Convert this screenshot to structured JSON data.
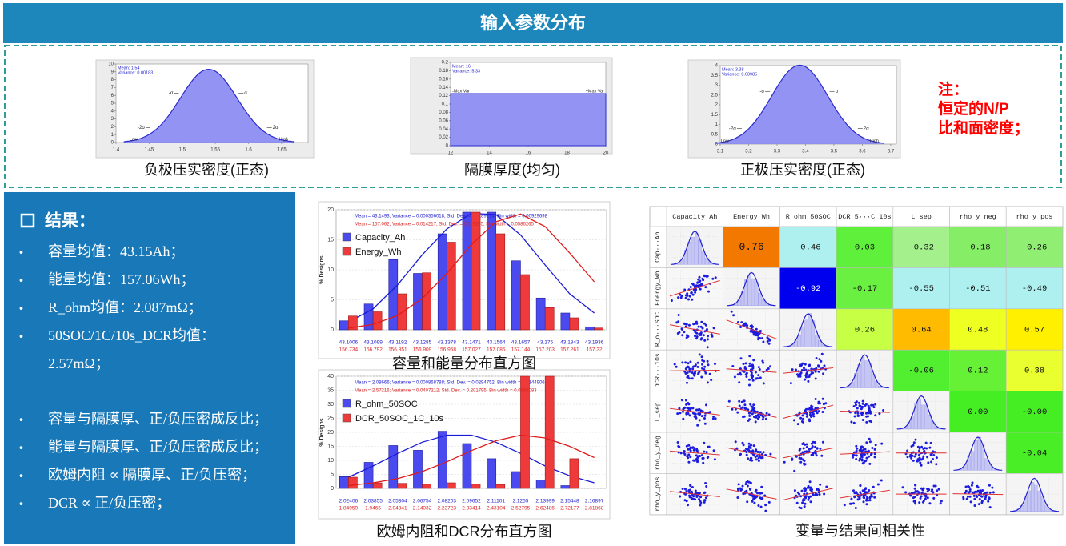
{
  "header": {
    "title": "输入参数分布"
  },
  "note": [
    "注：",
    "恒定的N/P",
    "比和面密度；"
  ],
  "results": {
    "title": "结果：",
    "groups": [
      [
        [
          "容量均值：43.15Ah；"
        ],
        [
          "能量均值：157.06Wh；"
        ],
        [
          "R_ohm均值：2.087mΩ；"
        ],
        [
          "50SOC/1C/10s_DCR均值：",
          "2.57mΩ；"
        ]
      ],
      [
        [
          "容量与隔膜厚、正/负压密成反比；"
        ],
        [
          "能量与隔膜厚、正/负压密成反比；"
        ],
        [
          "欧姆内阻 ∝ 隔膜厚、正/负压密；"
        ],
        [
          "DCR ∝  正/负压密；"
        ]
      ]
    ]
  },
  "chart_data": [
    {
      "type": "normal",
      "caption": "负极压实密度(正态)",
      "mean": 1.54,
      "variance": 0.00183,
      "stats": [
        "Mean: 1.54",
        "Variance: 0.00183"
      ],
      "markers": [
        "-2σ",
        "-σ",
        "σ",
        "2σ"
      ],
      "ends": [
        "Low",
        "High"
      ],
      "xlim": [
        1.4,
        1.69
      ],
      "xticks": [
        1.4,
        1.45,
        1.5,
        1.55,
        1.6,
        1.65
      ],
      "ylim": [
        0,
        10
      ],
      "yticks": [
        0,
        1,
        2,
        3,
        4,
        5,
        6,
        7,
        8,
        9,
        10
      ],
      "color": "#8080f2"
    },
    {
      "type": "uniform",
      "caption": "隔膜厚度(均匀)",
      "range": [
        12,
        20
      ],
      "density": 0.125,
      "stats": [
        "Mean: 16",
        "Variance: 5.33"
      ],
      "ends": [
        "-Max Var",
        "+Max Var"
      ],
      "xlim": [
        12,
        20
      ],
      "xticks": [
        12,
        14,
        16,
        18,
        20
      ],
      "ylim": [
        0,
        0.2
      ],
      "yticks": [
        0,
        0.02,
        0.04,
        0.06,
        0.08,
        0.1,
        0.12,
        0.14,
        0.16,
        0.18,
        0.2
      ],
      "color": "#8080f2"
    },
    {
      "type": "normal",
      "caption": "正极压实密度(正态)",
      "mean": 3.38,
      "variance": 0.00985,
      "stats": [
        "Mean: 3.38",
        "Variance: 0.00985"
      ],
      "markers": [
        "-2σ",
        "-σ",
        "σ",
        "2σ"
      ],
      "ends": [
        "Low",
        "High"
      ],
      "xlim": [
        3.1,
        3.72
      ],
      "xticks": [
        3.1,
        3.2,
        3.3,
        3.4,
        3.5,
        3.6,
        3.7
      ],
      "ylim": [
        0,
        4
      ],
      "yticks": [
        0,
        0.5,
        1,
        1.5,
        2,
        2.5,
        3,
        3.5,
        4
      ],
      "color": "#8080f2"
    },
    {
      "type": "bar",
      "caption": "容量和能量分布直方图",
      "ylabel": "% Designs",
      "categories": [
        "43.1006",
        "43.1099",
        "43.1192",
        "43.1285",
        "43.1378",
        "43.1471",
        "43.1564",
        "43.1657",
        "43.175",
        "43.1843",
        "43.1936"
      ],
      "categories2": [
        "156.734",
        "156.792",
        "156.851",
        "156.909",
        "156.968",
        "157.027",
        "157.085",
        "157.144",
        "157.203",
        "157.261",
        "157.32"
      ],
      "series": [
        {
          "name": "Capacity_Ah",
          "color": "#4a4aee",
          "stats": "Mean = 43.1493;  Variance = 0.000356018;  Std. Dev. = 0.0189214;  Bin width = 0.00929698",
          "values": [
            1.5,
            4.3,
            11.7,
            9.4,
            16.0,
            19.6,
            19.6,
            11.5,
            5.3,
            2.8,
            0.5
          ],
          "fit": [
            1.3,
            3.5,
            7.5,
            12.5,
            16.8,
            19.4,
            19.2,
            15.8,
            10.8,
            6.0,
            2.8
          ]
        },
        {
          "name": "Energy_Wh",
          "color": "#ee3a3a",
          "stats": "Mean = 157.062;  Variance = 0.014217;  Std. Dev. = 0.119235;  Bin width = 0.0586265",
          "values": [
            2.3,
            3.0,
            6.0,
            9.5,
            14.6,
            19.6,
            16.0,
            9.2,
            3.7,
            2.0,
            0.3
          ],
          "fit": [
            0.3,
            0.9,
            2.4,
            5.2,
            9.4,
            14.2,
            18.0,
            19.3,
            17.2,
            12.8,
            8.0
          ]
        }
      ],
      "ylim": [
        0,
        20
      ],
      "yticks": [
        0,
        5,
        10,
        15,
        20
      ],
      "grid": true
    },
    {
      "type": "bar",
      "caption": "欧姆内阻和DCR分布直方图",
      "ylabel": "% Designs",
      "categories": [
        "2.02406",
        "2.03855",
        "2.05304",
        "2.06754",
        "2.08203",
        "2.09652",
        "2.11101",
        "2.1255",
        "2.13999",
        "2.15448",
        "2.16897"
      ],
      "categories2": [
        "1.84959",
        "1.9465",
        "2.04341",
        "2.14032",
        "2.23723",
        "2.33414",
        "2.43104",
        "2.52795",
        "2.62486",
        "2.72177",
        "2.81868"
      ],
      "series": [
        {
          "name": "R_ohm_50SOC",
          "color": "#4a4aee",
          "stats": "Mean = 2.08666;  Variance = 0.000868788;  Std. Dev. = 0.0294752;  Bin width = 0.0144906",
          "values": [
            4.2,
            9.3,
            15.3,
            13.6,
            20.4,
            16.0,
            10.6,
            6.0,
            3.0,
            1.0,
            0
          ],
          "fit": [
            4.0,
            8.0,
            12.5,
            16.5,
            19.0,
            19.0,
            16.5,
            12.5,
            8.0,
            4.5,
            2.0
          ]
        },
        {
          "name": "DCR_50SOC_1C_10s",
          "color": "#ee3a3a",
          "stats": "Mean = 2.57216;  Variance = 0.0407212;  Std. Dev. = 0.201795;  Bin width = 0.0969083",
          "values": [
            4.0,
            2.0,
            1.8,
            1.5,
            2.0,
            1.5,
            1.4,
            40,
            40,
            10.6,
            0
          ],
          "fit": [
            1.0,
            2.0,
            3.5,
            6.0,
            9.5,
            13.5,
            17.0,
            19.0,
            18.0,
            15.0,
            11.0
          ]
        }
      ],
      "ylim": [
        0,
        40
      ],
      "yticks": [
        0,
        5,
        10,
        15,
        20,
        25,
        30,
        35,
        40
      ],
      "grid": true
    }
  ],
  "correlation": {
    "caption": "变量与结果间相关性",
    "columns": [
      "Capacity_Ah",
      "Energy_Wh",
      "R_ohm_50SOC",
      "DCR_5···C_10s",
      "L_sep",
      "rho_y_neg",
      "rho_y_pos"
    ],
    "rows": [
      "Cap···Ah",
      "Energy_Wh",
      "R_o···SOC",
      "DCR···10s",
      "L_sep",
      "rho_y_neg",
      "rho_y_pos"
    ],
    "cells": [
      [
        null,
        "0.76",
        "-0.46",
        "0.03",
        "-0.32",
        "-0.18",
        "-0.26"
      ],
      [
        null,
        null,
        "-0.92",
        "-0.17",
        "-0.55",
        "-0.51",
        "-0.49"
      ],
      [
        null,
        null,
        null,
        "0.26",
        "0.64",
        "0.48",
        "0.57"
      ],
      [
        null,
        null,
        null,
        null,
        "-0.06",
        "0.12",
        "0.38"
      ],
      [
        null,
        null,
        null,
        null,
        null,
        "0.00",
        "-0.00"
      ],
      [
        null,
        null,
        null,
        null,
        null,
        null,
        "-0.04"
      ],
      [
        null,
        null,
        null,
        null,
        null,
        null,
        null
      ]
    ],
    "colors": [
      [
        null,
        "#f27800",
        "#aef0f0",
        "#5ef03a",
        "#a4f08c",
        "#86ee66",
        "#90ee72"
      ],
      [
        null,
        null,
        "#0000ee",
        "#6af040",
        "#aef0f0",
        "#aef0f0",
        "#aef0f0"
      ],
      [
        null,
        null,
        null,
        "#c6ff44",
        "#ffbb00",
        "#eeff22",
        "#fff000"
      ],
      [
        null,
        null,
        null,
        null,
        "#52ee30",
        "#66f036",
        "#eaff30"
      ],
      [
        null,
        null,
        null,
        null,
        null,
        "#44ee22",
        "#44ee22"
      ],
      [
        null,
        null,
        null,
        null,
        null,
        null,
        "#4aee26"
      ],
      [
        null,
        null,
        null,
        null,
        null,
        null,
        null
      ]
    ]
  }
}
